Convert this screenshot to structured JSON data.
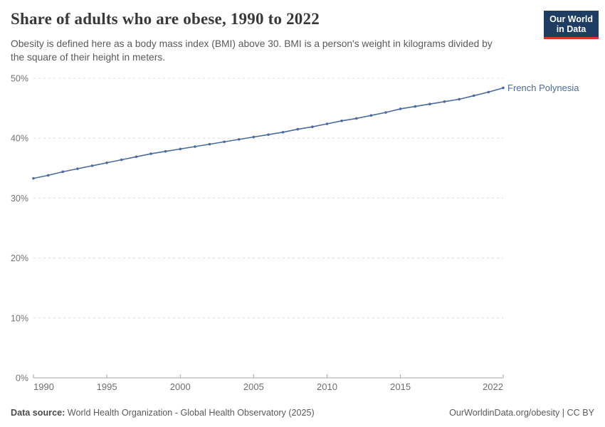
{
  "header": {
    "title": "Share of adults who are obese, 1990 to 2022",
    "subtitle": "Obesity is defined here as a body mass index (BMI) above 30. BMI is a person's weight in kilograms divided by the square of their height in meters."
  },
  "logo": {
    "line1": "Our World",
    "line2": "in Data"
  },
  "chart_data": {
    "type": "line",
    "title": "Share of adults who are obese, 1990 to 2022",
    "x": [
      1990,
      1991,
      1992,
      1993,
      1994,
      1995,
      1996,
      1997,
      1998,
      1999,
      2000,
      2001,
      2002,
      2003,
      2004,
      2005,
      2006,
      2007,
      2008,
      2009,
      2010,
      2011,
      2012,
      2013,
      2014,
      2015,
      2016,
      2017,
      2018,
      2019,
      2020,
      2021,
      2022
    ],
    "series": [
      {
        "name": "French Polynesia",
        "color": "#4C6A9C",
        "values": [
          33.3,
          33.8,
          34.4,
          34.9,
          35.4,
          35.9,
          36.4,
          36.9,
          37.4,
          37.8,
          38.2,
          38.6,
          39.0,
          39.4,
          39.8,
          40.2,
          40.6,
          41.0,
          41.5,
          41.9,
          42.4,
          42.9,
          43.3,
          43.8,
          44.3,
          44.9,
          45.3,
          45.7,
          46.1,
          46.5,
          47.1,
          47.7,
          48.4
        ]
      }
    ],
    "xlabel": "",
    "ylabel": "",
    "ylim": [
      0,
      50
    ],
    "ytick_step": 10,
    "ytick_suffix": "%",
    "xticks": [
      1990,
      1995,
      2000,
      2005,
      2010,
      2015,
      2022
    ],
    "grid": "horizontal-dashed",
    "legend_position": "end-of-line"
  },
  "footer": {
    "source_label": "Data source:",
    "source_text": " World Health Organization - Global Health Observatory (2025)",
    "rights": "OurWorldinData.org/obesity | CC BY"
  },
  "colors": {
    "line": "#4C6A9C",
    "series_label": "#4C6A9C",
    "grid": "#dcdcdc",
    "axis": "#a6a6a6",
    "ytick_label": "#737373",
    "xtick_label": "#6e6e6e",
    "title": "#383838",
    "subtitle": "#5a5a5a",
    "footer": "#5b5b5b",
    "logo_bg": "#1d3d63",
    "logo_accent": "#d7342c"
  }
}
